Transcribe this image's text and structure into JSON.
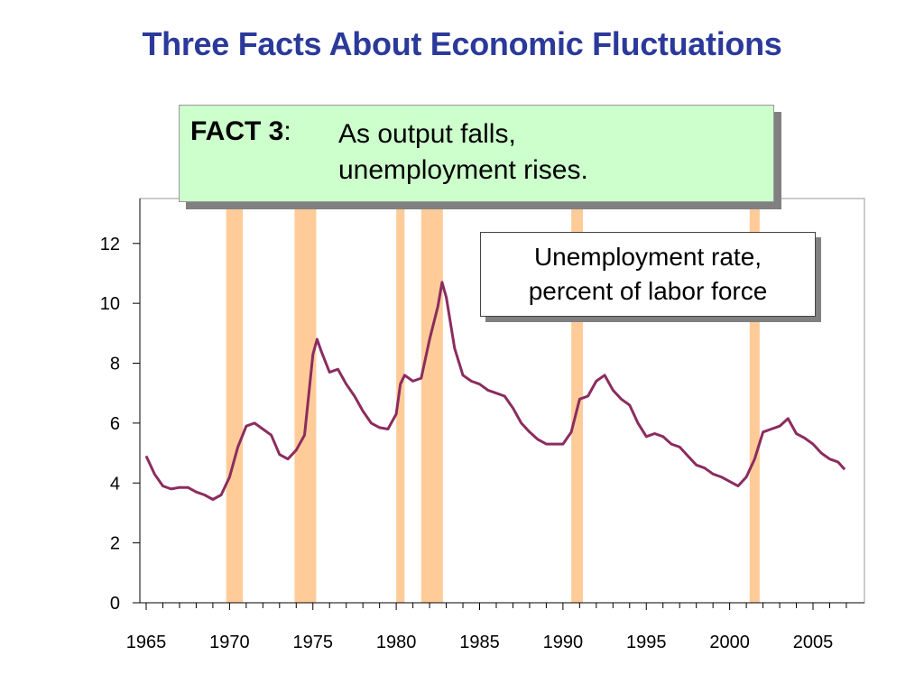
{
  "slide": {
    "title": "Three Facts About Economic Fluctuations"
  },
  "fact_box": {
    "label": "FACT 3",
    "colon": ":",
    "line1": "As output falls,",
    "line2": "unemployment rises."
  },
  "colors": {
    "title": "#2b3a9a",
    "series": "#8b2c5f",
    "recession": "#ffcc99",
    "fact_bg": "#ccffcc"
  },
  "chart_data": {
    "type": "line",
    "annotation": [
      "Unemployment rate,",
      "percent of labor force"
    ],
    "xlim": [
      1965,
      2007.5
    ],
    "ylim": [
      0,
      13.5
    ],
    "xticks": [
      1965,
      1970,
      1975,
      1980,
      1985,
      1990,
      1995,
      2000,
      2005
    ],
    "yticks": [
      0,
      2,
      4,
      6,
      8,
      10,
      12
    ],
    "recessions": [
      [
        1969.8,
        1970.8
      ],
      [
        1973.9,
        1975.2
      ],
      [
        1980.0,
        1980.5
      ],
      [
        1981.5,
        1982.8
      ],
      [
        1990.5,
        1991.2
      ],
      [
        2001.2,
        2001.8
      ]
    ],
    "series": [
      {
        "x": [
          1965.0,
          1965.5,
          1966.0,
          1966.5,
          1967.0,
          1967.5,
          1968.0,
          1968.5,
          1969.0,
          1969.5,
          1970.0,
          1970.5,
          1971.0,
          1971.5,
          1972.0,
          1972.5,
          1973.0,
          1973.5,
          1974.0,
          1974.5,
          1975.0,
          1975.25,
          1975.5,
          1976.0,
          1976.5,
          1977.0,
          1977.5,
          1978.0,
          1978.5,
          1979.0,
          1979.5,
          1980.0,
          1980.25,
          1980.5,
          1981.0,
          1981.5,
          1982.0,
          1982.5,
          1982.75,
          1983.0,
          1983.5,
          1984.0,
          1984.5,
          1985.0,
          1985.5,
          1986.0,
          1986.5,
          1987.0,
          1987.5,
          1988.0,
          1988.5,
          1989.0,
          1989.5,
          1990.0,
          1990.5,
          1991.0,
          1991.5,
          1992.0,
          1992.5,
          1993.0,
          1993.5,
          1994.0,
          1994.5,
          1995.0,
          1995.5,
          1996.0,
          1996.5,
          1997.0,
          1997.5,
          1998.0,
          1998.5,
          1999.0,
          1999.5,
          2000.0,
          2000.5,
          2001.0,
          2001.5,
          2002.0,
          2002.5,
          2003.0,
          2003.5,
          2004.0,
          2004.5,
          2005.0,
          2005.5,
          2006.0,
          2006.5,
          2006.9
        ],
        "values": [
          4.9,
          4.3,
          3.9,
          3.8,
          3.85,
          3.85,
          3.7,
          3.6,
          3.45,
          3.6,
          4.2,
          5.2,
          5.9,
          6.0,
          5.8,
          5.6,
          4.95,
          4.8,
          5.1,
          5.6,
          8.3,
          8.8,
          8.4,
          7.7,
          7.8,
          7.3,
          6.9,
          6.4,
          6.0,
          5.85,
          5.8,
          6.3,
          7.3,
          7.6,
          7.4,
          7.5,
          8.8,
          9.9,
          10.7,
          10.2,
          8.5,
          7.6,
          7.4,
          7.3,
          7.1,
          7.0,
          6.9,
          6.5,
          6.0,
          5.7,
          5.45,
          5.3,
          5.3,
          5.3,
          5.7,
          6.8,
          6.9,
          7.4,
          7.6,
          7.1,
          6.8,
          6.6,
          6.0,
          5.55,
          5.65,
          5.55,
          5.3,
          5.2,
          4.9,
          4.6,
          4.5,
          4.3,
          4.2,
          4.05,
          3.9,
          4.2,
          4.8,
          5.7,
          5.8,
          5.9,
          6.15,
          5.65,
          5.5,
          5.3,
          5.0,
          4.8,
          4.7,
          4.45
        ]
      }
    ]
  }
}
